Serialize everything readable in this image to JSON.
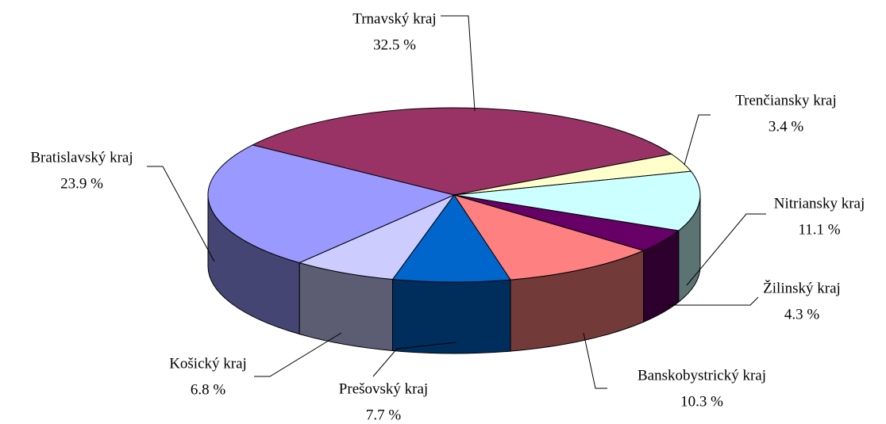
{
  "chart_data": {
    "type": "pie3d",
    "categories": [
      "Trnavský kraj",
      "Trenčiansky kraj",
      "Nitriansky kraj",
      "Žilinský kraj",
      "Banskobystrický kraj",
      "Prešovský kraj",
      "Košický kraj",
      "Bratislavský kraj"
    ],
    "values": [
      32.5,
      3.4,
      11.1,
      4.3,
      10.3,
      7.7,
      6.8,
      23.9
    ],
    "value_labels": [
      "32.5 %",
      "3.4 %",
      "11.1 %",
      "4.3 %",
      "10.3 %",
      "7.7 %",
      "6.8 %",
      "23.9 %"
    ],
    "colors": [
      "#993366",
      "#ffffcc",
      "#ccffff",
      "#660066",
      "#ff8080",
      "#0066cc",
      "#ccccff",
      "#9999ff"
    ]
  }
}
